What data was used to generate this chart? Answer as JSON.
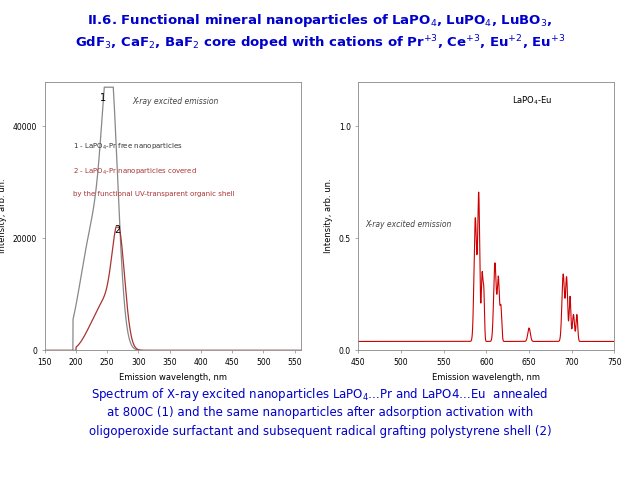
{
  "title_line1": "II.6. Functional mineral nanoparticles of LaPO$_4$, LuPO$_4$, LuBO$_3$,",
  "title_line2": "GdF$_3$, CaF$_2$, BaF$_2$ core doped with cations of Pr$^{+3}$, Ce$^{+3}$, Eu$^{+2}$, Eu$^{+3}$",
  "caption_line1": "Spectrum of X-ray excited nanoparticles LaPO$_4$…Pr and LaPO4…Eu  annealed",
  "caption_line2": "at 800C (1) and the same nanoparticles after adsorption activation with",
  "caption_line3": "oligoperoxide surfactant and subsequent radical grafting polystyrene shell (2)",
  "title_color": "#0000CC",
  "caption_color": "#0000CC",
  "bg_color": "#FFFFFF",
  "left_plot": {
    "xlabel": "Emission wavelength, nm",
    "ylabel": "Intensity, arb. un.",
    "annotation": "X-ray excited emission",
    "legend1": "1 - LaPO$_4$-Pr free nanoparticles",
    "legend2": "2 - LaPO$_4$-Pr nanoparticles covered",
    "legend3": "by the functional UV-transparent organic shell",
    "xlim": [
      150,
      560
    ],
    "ylim": [
      0,
      48000
    ],
    "yticks": [
      0,
      20000,
      40000
    ],
    "xticks": [
      150,
      200,
      250,
      300,
      350,
      400,
      450,
      500,
      550
    ],
    "curve1_color": "#888888",
    "curve2_color": "#AA3333"
  },
  "right_plot": {
    "xlabel": "Emission wavelength, nm",
    "ylabel": "Intensity, arb. un.",
    "annotation": "X-ray excited emission",
    "legend": "LaPO$_4$-Eu",
    "xlim": [
      450,
      750
    ],
    "ylim": [
      0,
      1.2
    ],
    "yticks": [
      0.0,
      0.5,
      1.0
    ],
    "xticks": [
      450,
      500,
      550,
      600,
      650,
      700,
      750
    ],
    "curve_color": "#CC0000"
  }
}
